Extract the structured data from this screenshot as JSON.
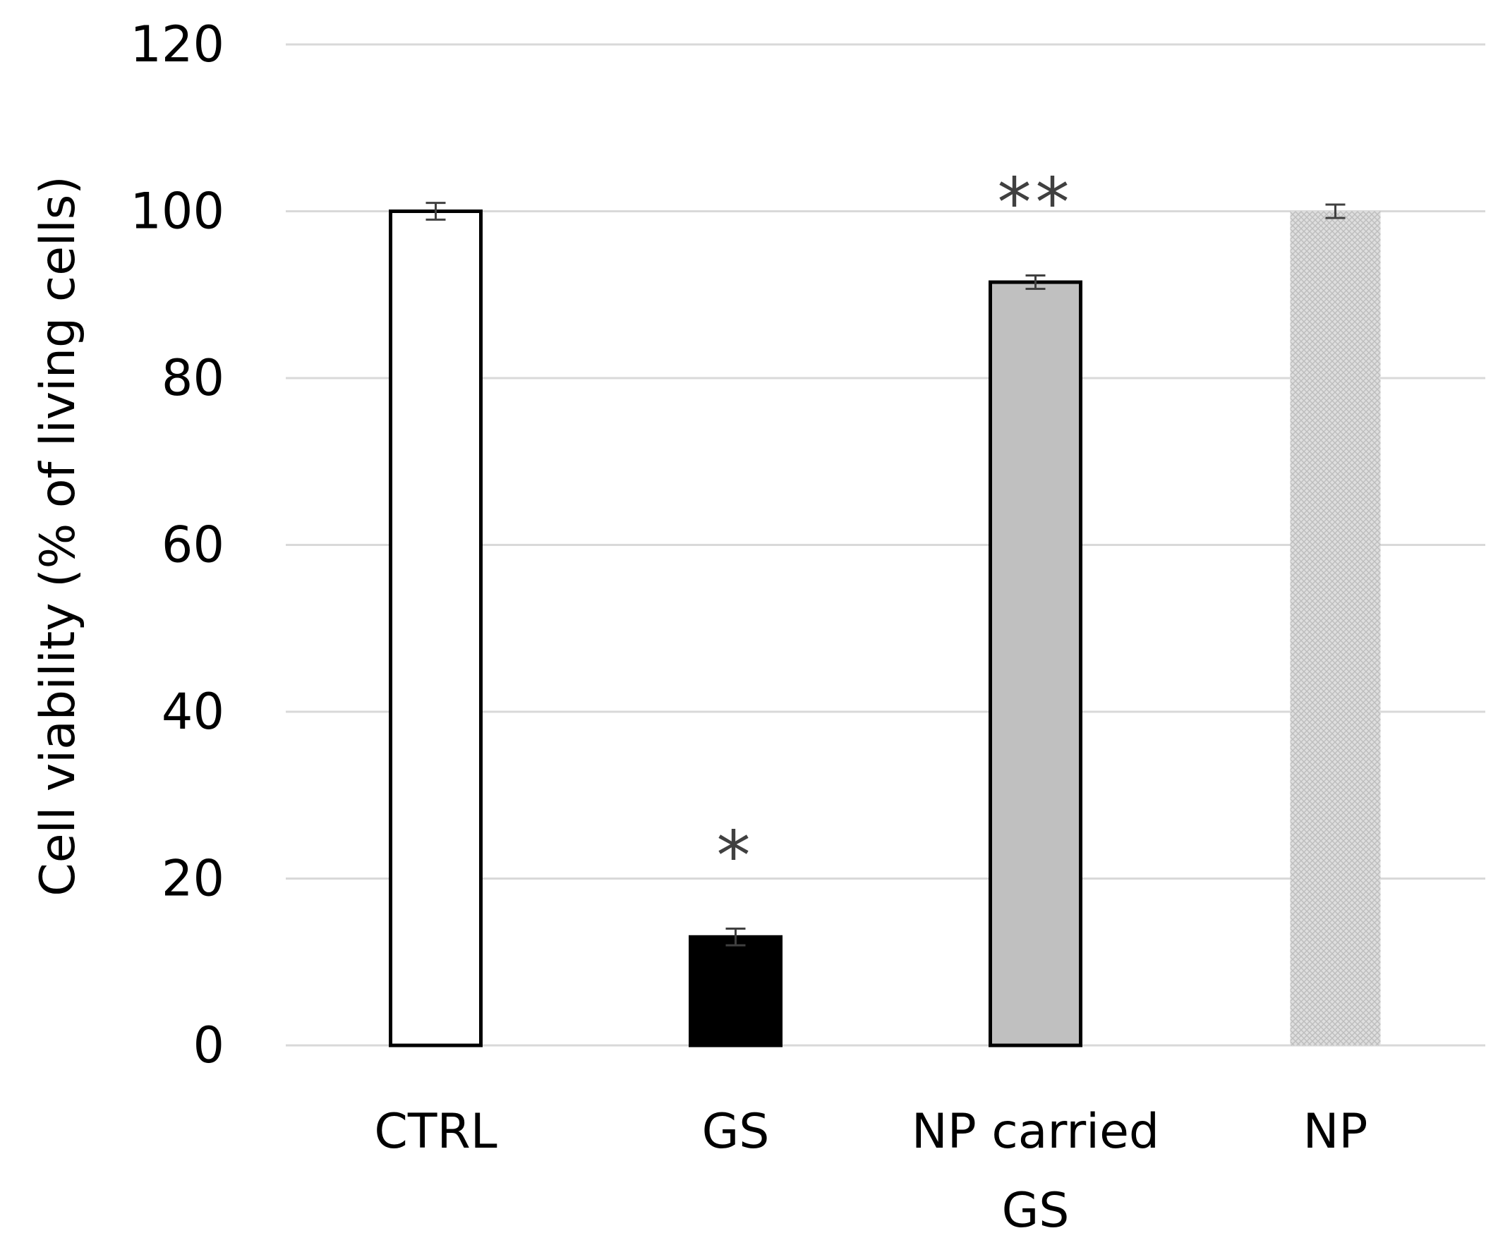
{
  "chart_data": {
    "type": "bar",
    "ylabel": "Cell viability (% of living cells)",
    "ylim": [
      0,
      120
    ],
    "yticks": [
      0,
      20,
      40,
      60,
      80,
      100,
      120
    ],
    "grid": true,
    "categories": [
      {
        "label_lines": [
          "CTRL"
        ],
        "value": 100,
        "error": 1,
        "annotation": "",
        "fill": "#ffffff",
        "stroke": "#000000",
        "pattern": "none"
      },
      {
        "label_lines": [
          "GS"
        ],
        "value": 13,
        "error": 1,
        "annotation": "*",
        "fill": "#000000",
        "stroke": "#000000",
        "pattern": "none"
      },
      {
        "label_lines": [
          "NP carried",
          "GS"
        ],
        "value": 91.5,
        "error": 0.8,
        "annotation": "**",
        "fill": "#c0c0c0",
        "stroke": "#000000",
        "pattern": "none"
      },
      {
        "label_lines": [
          "NP"
        ],
        "value": 100,
        "error": 0.8,
        "annotation": "",
        "fill": "#d9d9d9",
        "stroke": "none",
        "pattern": "crosshatch"
      }
    ]
  },
  "colors": {
    "grid": "#d9d9d9",
    "axis_text": "#000000",
    "error_bar": "#404040",
    "annotation": "#404040"
  }
}
